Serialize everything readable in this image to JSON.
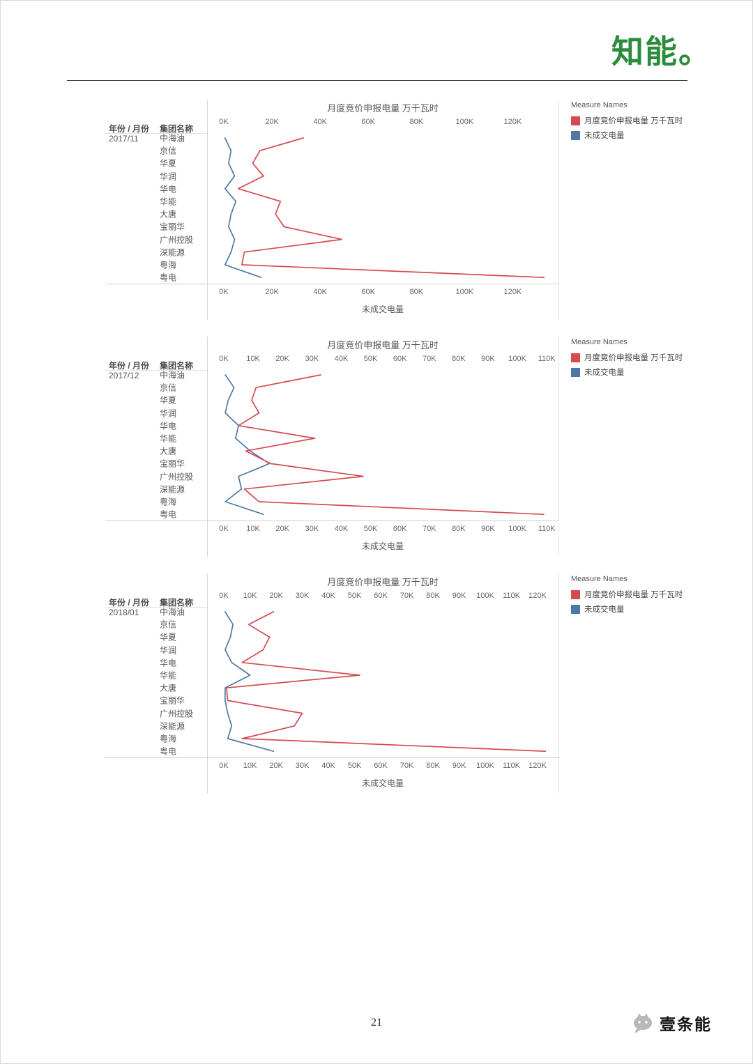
{
  "page": {
    "number": "21",
    "logo_text": "知能。",
    "footer_brand": "壹条能"
  },
  "columns": {
    "period": "年份 / 月份",
    "group": "集团名称"
  },
  "legend": {
    "title": "Measure Names",
    "entries": [
      {
        "label": "月度竞价申报电量 万千瓦时",
        "color": "#d6494f"
      },
      {
        "label": "未成交电量",
        "color": "#4e79a7"
      }
    ]
  },
  "chart_data": [
    {
      "type": "line",
      "orientation": "horizontal",
      "period": "2017/11",
      "title": "月度竞价申报电量 万千瓦时",
      "bottom_axis_label": "未成交电量",
      "x_unit": "K",
      "categories": [
        "中海油",
        "京信",
        "华夏",
        "华润",
        "华电",
        "华能",
        "大唐",
        "宝丽华",
        "广州控股",
        "深能源",
        "粤海",
        "粤电"
      ],
      "ticks": [
        "0K",
        "20K",
        "40K",
        "60K",
        "80K",
        "100K",
        "120K"
      ],
      "tick_values": [
        0,
        20,
        40,
        60,
        80,
        100,
        120
      ],
      "xlim": [
        0,
        139
      ],
      "grid": false,
      "legend_position": "right",
      "series": [
        {
          "name": "月度竞价申报电量 万千瓦时",
          "color": "#d6494f",
          "values": [
            33,
            15,
            12,
            16.5,
            6,
            23.5,
            21.5,
            25,
            49,
            8.5,
            7.5,
            133
          ]
        },
        {
          "name": "未成交电量",
          "color": "#4e79a7",
          "values": [
            0.5,
            3,
            2,
            4.5,
            0.5,
            5,
            3,
            2,
            4.5,
            3,
            0.5,
            15.5
          ]
        }
      ]
    },
    {
      "type": "line",
      "orientation": "horizontal",
      "period": "2017/12",
      "title": "月度竞价申报电量 万千瓦时",
      "bottom_axis_label": "未成交电量",
      "x_unit": "K",
      "categories": [
        "中海油",
        "京信",
        "华夏",
        "华润",
        "华电",
        "华能",
        "大唐",
        "宝丽华",
        "广州控股",
        "深能源",
        "粤海",
        "粤电"
      ],
      "ticks": [
        "0K",
        "10K",
        "20K",
        "30K",
        "40K",
        "50K",
        "60K",
        "70K",
        "80K",
        "90K",
        "100K",
        "110K"
      ],
      "tick_values": [
        0,
        10,
        20,
        30,
        40,
        50,
        60,
        70,
        80,
        90,
        100,
        110
      ],
      "xlim": [
        0,
        114
      ],
      "grid": false,
      "legend_position": "right",
      "series": [
        {
          "name": "月度竞价申报电量 万千瓦时",
          "color": "#d6494f",
          "values": [
            33,
            11,
            9.5,
            12,
            5,
            31,
            7.5,
            16,
            47.5,
            7,
            12,
            109
          ]
        },
        {
          "name": "未成交电量",
          "color": "#4e79a7",
          "values": [
            0.5,
            3.5,
            1.5,
            0.5,
            5,
            4,
            9,
            15.5,
            5,
            6,
            0.5,
            13.5
          ]
        }
      ]
    },
    {
      "type": "line",
      "orientation": "horizontal",
      "period": "2018/01",
      "title": "月度竞价申报电量 万千瓦时",
      "bottom_axis_label": "未成交电量",
      "x_unit": "K",
      "categories": [
        "中海油",
        "京信",
        "华夏",
        "华润",
        "华电",
        "华能",
        "大唐",
        "宝丽华",
        "广州控股",
        "深能源",
        "粤海",
        "粤电"
      ],
      "ticks": [
        "0K",
        "10K",
        "20K",
        "30K",
        "40K",
        "50K",
        "60K",
        "70K",
        "80K",
        "90K",
        "100K",
        "110K",
        "120K"
      ],
      "tick_values": [
        0,
        10,
        20,
        30,
        40,
        50,
        60,
        70,
        80,
        90,
        100,
        110,
        120
      ],
      "xlim": [
        0,
        128
      ],
      "grid": false,
      "legend_position": "right",
      "series": [
        {
          "name": "月度竞价申报电量 万千瓦时",
          "color": "#d6494f",
          "values": [
            19,
            9.5,
            17.5,
            15,
            7,
            52,
            1,
            1.5,
            30,
            27,
            7,
            123
          ]
        },
        {
          "name": "未成交电量",
          "color": "#4e79a7",
          "values": [
            0.5,
            3.5,
            2.5,
            0.5,
            3,
            10,
            0.5,
            0.5,
            1.5,
            3,
            1.5,
            19
          ]
        }
      ]
    }
  ]
}
